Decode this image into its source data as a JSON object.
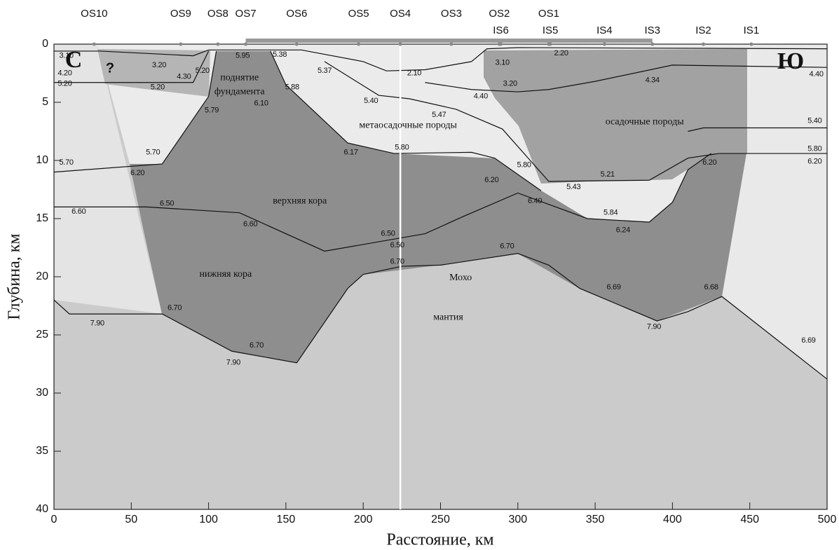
{
  "chart_data": {
    "type": "profile",
    "xlabel": "Расстояние, км",
    "ylabel": "Глубина, км",
    "xlim": [
      0,
      500
    ],
    "ylim": [
      0,
      40
    ],
    "xticks": [
      0,
      50,
      100,
      150,
      200,
      250,
      300,
      350,
      400,
      450,
      500
    ],
    "yticks": [
      0,
      5,
      10,
      15,
      20,
      25,
      30,
      35,
      40
    ],
    "y_inverted": true,
    "stations_top": [
      {
        "name": "OS10",
        "x": 26
      },
      {
        "name": "OS9",
        "x": 82
      },
      {
        "name": "OS8",
        "x": 106
      },
      {
        "name": "OS7",
        "x": 124
      },
      {
        "name": "OS6",
        "x": 157
      },
      {
        "name": "OS5",
        "x": 197
      },
      {
        "name": "OS4",
        "x": 224
      },
      {
        "name": "OS3",
        "x": 257
      },
      {
        "name": "OS2",
        "x": 288
      },
      {
        "name": "OS1",
        "x": 320
      }
    ],
    "stations_bottom": [
      {
        "name": "IS6",
        "x": 289
      },
      {
        "name": "IS5",
        "x": 321
      },
      {
        "name": "IS4",
        "x": 356
      },
      {
        "name": "IS3",
        "x": 387
      },
      {
        "name": "IS2",
        "x": 420
      },
      {
        "name": "IS1",
        "x": 451
      }
    ],
    "profile_segment": [
      124,
      387
    ],
    "corner_labels": [
      "С",
      "Ю",
      "?"
    ],
    "boundaries": [
      {
        "x": [
          0,
          30,
          90,
          100,
          160,
          200,
          215,
          240,
          270,
          280,
          300,
          500
        ],
        "values": [
          0.6,
          0.6,
          1,
          0.5,
          0.5,
          1.5,
          2.3,
          2.2,
          1.5,
          0.4,
          0.3,
          0.4
        ]
      },
      {
        "x": [
          0,
          90,
          100
        ],
        "values": [
          3.3,
          3.3,
          0.6
        ]
      },
      {
        "x": [
          240,
          270,
          300,
          320,
          350,
          400,
          500
        ],
        "values": [
          3.3,
          3.9,
          4.1,
          3.9,
          3.2,
          1.8,
          2
        ]
      },
      {
        "x": [
          0,
          70,
          100,
          105
        ],
        "values": [
          11,
          10.3,
          4.5,
          0.6
        ]
      },
      {
        "x": [
          140,
          150,
          190,
          220,
          270,
          285,
          315
        ],
        "values": [
          0.6,
          3.5,
          8.5,
          9.4,
          9.3,
          9.8,
          12.6
        ]
      },
      {
        "x": [
          175,
          210,
          230,
          260,
          290,
          320,
          385,
          410,
          430,
          500
        ],
        "values": [
          1.5,
          4.4,
          4.7,
          5.6,
          7.3,
          11.8,
          11.7,
          9.8,
          9.4,
          9.4
        ]
      },
      {
        "x": [
          410,
          420,
          500
        ],
        "values": [
          7.5,
          7.2,
          7.2
        ]
      },
      {
        "x": [
          0,
          60,
          120,
          175,
          240,
          265,
          300,
          345,
          385,
          400,
          410,
          425
        ],
        "values": [
          14,
          14,
          14.5,
          17.8,
          16.3,
          14.8,
          12.8,
          15,
          15.3,
          13.6,
          10.8,
          9.4
        ]
      },
      {
        "x": [
          0,
          10,
          70,
          115,
          157,
          190,
          200,
          225,
          250,
          300,
          320,
          340,
          390,
          410,
          432,
          500
        ],
        "values": [
          22,
          23.2,
          23.2,
          26.4,
          27.4,
          21,
          19.8,
          19.1,
          19,
          18,
          19,
          21,
          23.8,
          23,
          21.7,
          28.8
        ]
      }
    ],
    "velocity_labels": [
      {
        "x": 8,
        "y": 1.0,
        "label": "3.10"
      },
      {
        "x": 7,
        "y": 2.5,
        "label": "4.20"
      },
      {
        "x": 7,
        "y": 3.4,
        "label": "5.20"
      },
      {
        "x": 68,
        "y": 1.8,
        "label": "3.20"
      },
      {
        "x": 84,
        "y": 2.8,
        "label": "4.30"
      },
      {
        "x": 96,
        "y": 2.3,
        "label": "5.20"
      },
      {
        "x": 67,
        "y": 3.7,
        "label": "5.20"
      },
      {
        "x": 122,
        "y": 1.0,
        "label": "5.95"
      },
      {
        "x": 146,
        "y": 0.9,
        "label": "5.38"
      },
      {
        "x": 175,
        "y": 2.3,
        "label": "5.37"
      },
      {
        "x": 154,
        "y": 3.7,
        "label": "5.88"
      },
      {
        "x": 134,
        "y": 5.1,
        "label": "6.10"
      },
      {
        "x": 102,
        "y": 5.7,
        "label": "5.79"
      },
      {
        "x": 64,
        "y": 9.3,
        "label": "5.70"
      },
      {
        "x": 8,
        "y": 10.2,
        "label": "5.70"
      },
      {
        "x": 54,
        "y": 11.1,
        "label": "6.20"
      },
      {
        "x": 192,
        "y": 9.3,
        "label": "6.17"
      },
      {
        "x": 225,
        "y": 8.9,
        "label": "5.80"
      },
      {
        "x": 233,
        "y": 2.5,
        "label": "2.10"
      },
      {
        "x": 205,
        "y": 4.9,
        "label": "5.40"
      },
      {
        "x": 249,
        "y": 6.1,
        "label": "5.47"
      },
      {
        "x": 276,
        "y": 4.5,
        "label": "4.40"
      },
      {
        "x": 290,
        "y": 1.6,
        "label": "3.10"
      },
      {
        "x": 295,
        "y": 3.4,
        "label": "3.20"
      },
      {
        "x": 328,
        "y": 0.8,
        "label": "2.20"
      },
      {
        "x": 387,
        "y": 3.1,
        "label": "4.34"
      },
      {
        "x": 492,
        "y": 6.6,
        "label": "5.40"
      },
      {
        "x": 493,
        "y": 2.6,
        "label": "4.40"
      },
      {
        "x": 492,
        "y": 9.0,
        "label": "5.80"
      },
      {
        "x": 492,
        "y": 10.1,
        "label": "6.20"
      },
      {
        "x": 304,
        "y": 10.4,
        "label": "5.80"
      },
      {
        "x": 283,
        "y": 11.7,
        "label": "6.20"
      },
      {
        "x": 358,
        "y": 11.2,
        "label": "5.21"
      },
      {
        "x": 336,
        "y": 12.3,
        "label": "5.43"
      },
      {
        "x": 424,
        "y": 10.2,
        "label": "6.20"
      },
      {
        "x": 311,
        "y": 13.5,
        "label": "6.40"
      },
      {
        "x": 360,
        "y": 14.5,
        "label": "5.84"
      },
      {
        "x": 368,
        "y": 16.0,
        "label": "6.24"
      },
      {
        "x": 73,
        "y": 13.7,
        "label": "6.50"
      },
      {
        "x": 16,
        "y": 14.4,
        "label": "6.60"
      },
      {
        "x": 127,
        "y": 15.5,
        "label": "6.60"
      },
      {
        "x": 216,
        "y": 16.3,
        "label": "6.50"
      },
      {
        "x": 222,
        "y": 17.3,
        "label": "6.50"
      },
      {
        "x": 222,
        "y": 18.7,
        "label": "6.70"
      },
      {
        "x": 293,
        "y": 17.4,
        "label": "6.70"
      },
      {
        "x": 362,
        "y": 20.9,
        "label": "6.69"
      },
      {
        "x": 425,
        "y": 20.9,
        "label": "6.68"
      },
      {
        "x": 78,
        "y": 22.7,
        "label": "6.70"
      },
      {
        "x": 28,
        "y": 24.0,
        "label": "7.90"
      },
      {
        "x": 131,
        "y": 25.9,
        "label": "6.70"
      },
      {
        "x": 116,
        "y": 27.4,
        "label": "7.90"
      },
      {
        "x": 388,
        "y": 24.3,
        "label": "7.90"
      },
      {
        "x": 488,
        "y": 25.5,
        "label": "6.69"
      }
    ],
    "region_labels": [
      {
        "x": 120,
        "y": 2.9,
        "text": "поднятие"
      },
      {
        "x": 120,
        "y": 4.1,
        "text": "фундамента"
      },
      {
        "x": 229,
        "y": 7.0,
        "text": "метаосадочные породы"
      },
      {
        "x": 382,
        "y": 6.7,
        "text": "осадочные породы"
      },
      {
        "x": 159,
        "y": 13.5,
        "text": "верхняя кора"
      },
      {
        "x": 111,
        "y": 19.8,
        "text": "нижняя кора"
      },
      {
        "x": 263,
        "y": 20.1,
        "text": "Мохо"
      },
      {
        "x": 255,
        "y": 23.5,
        "text": "мантия"
      }
    ]
  }
}
